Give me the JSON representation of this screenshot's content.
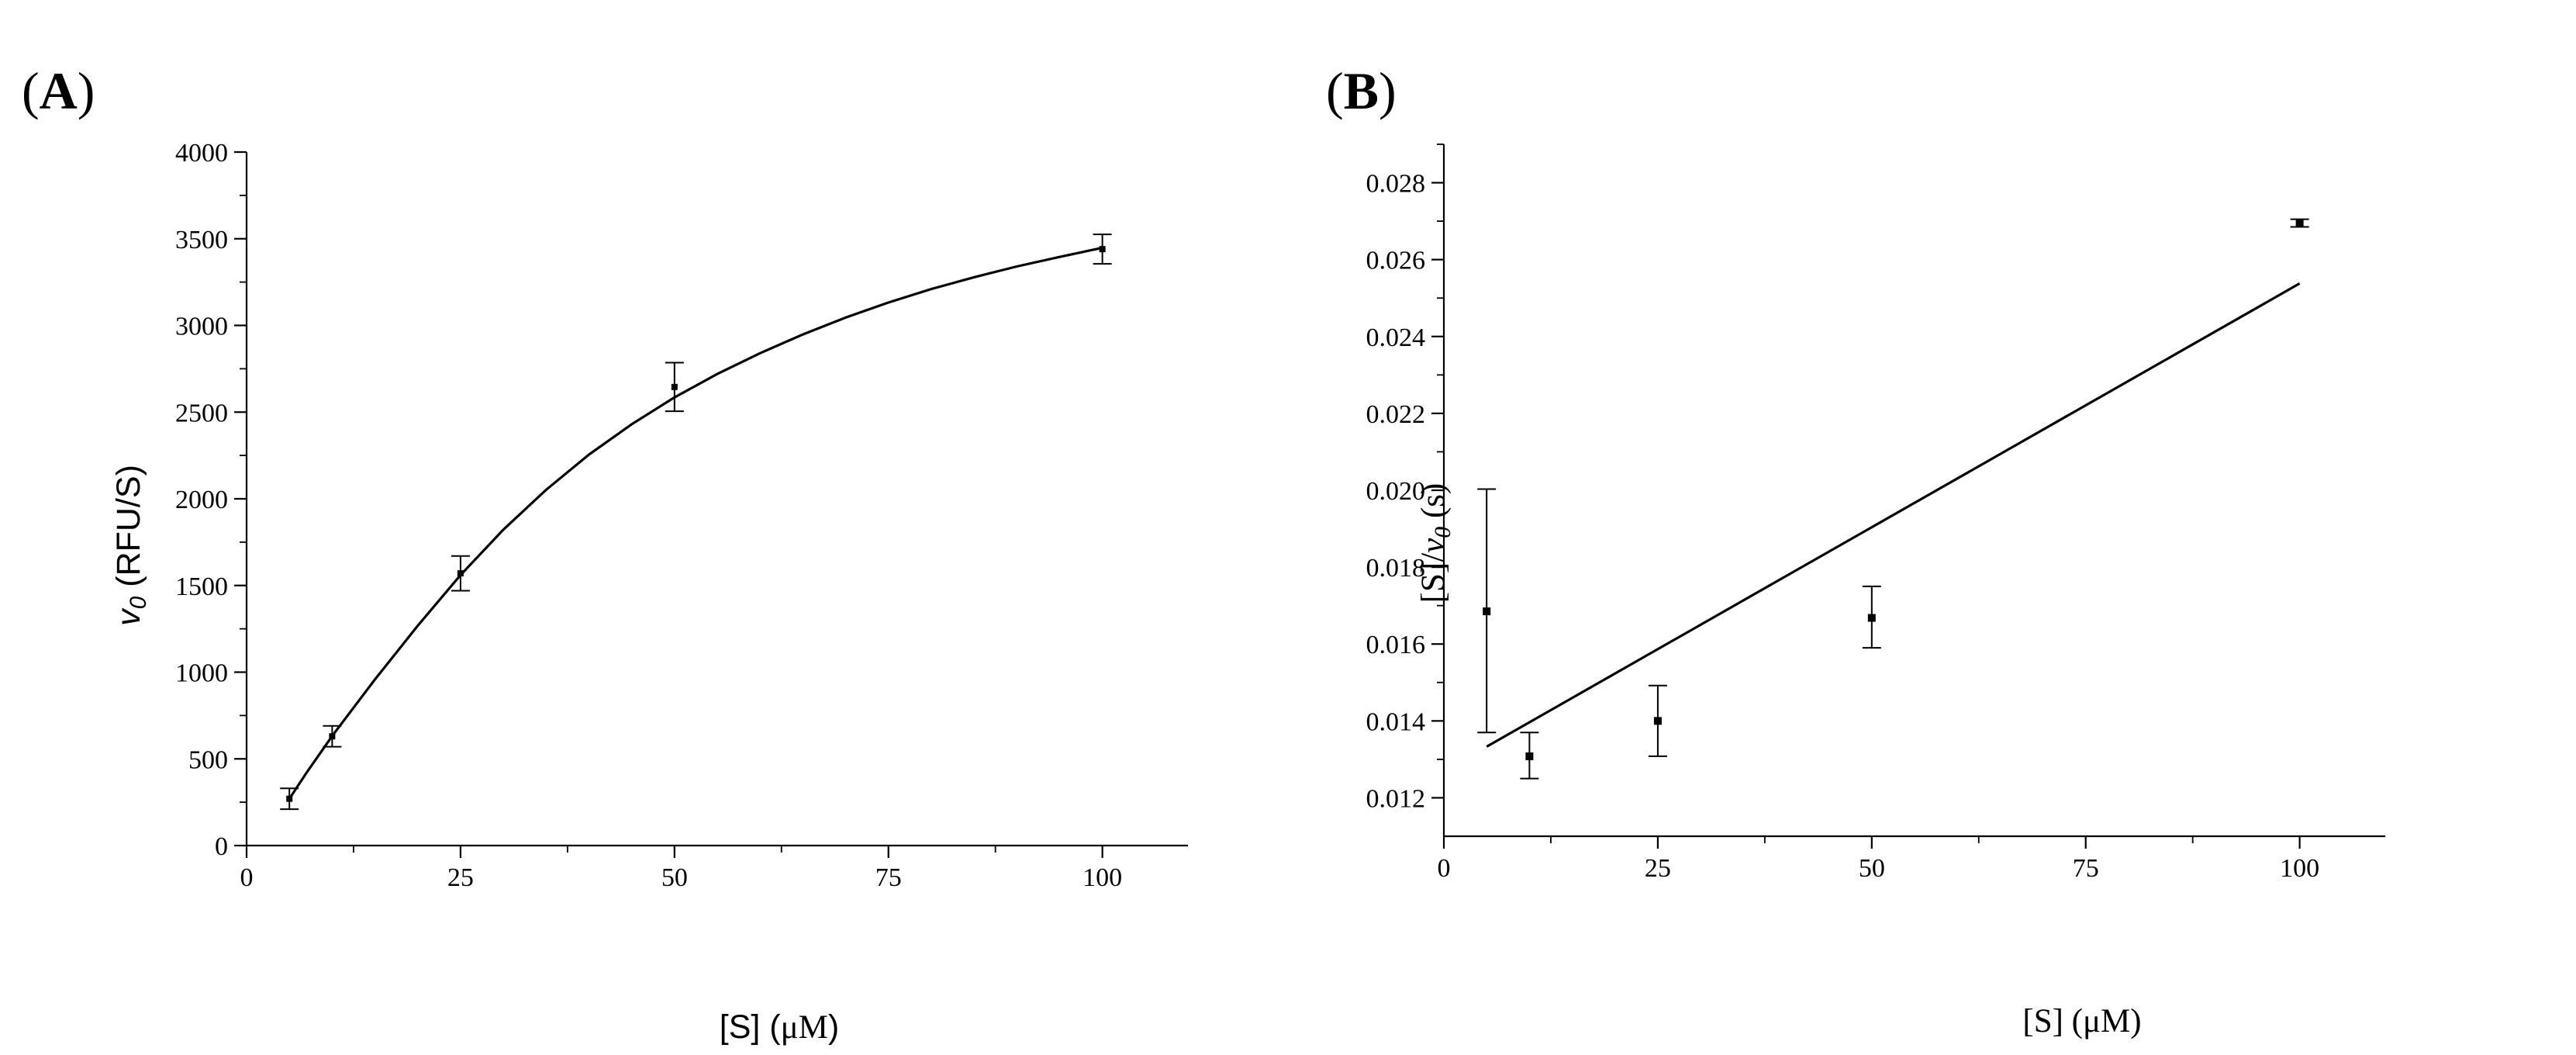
{
  "chart_data": [
    {
      "panel_label": "A",
      "type": "scatter",
      "fit": "michaelis-menten",
      "x": [
        5,
        10,
        25,
        50,
        100
      ],
      "y": [
        270,
        630,
        1570,
        2645,
        3440
      ],
      "yerr": [
        60,
        60,
        100,
        140,
        85
      ],
      "fit_curve": [
        [
          5,
          270
        ],
        [
          7,
          420
        ],
        [
          10,
          632
        ],
        [
          15,
          958
        ],
        [
          20,
          1268
        ],
        [
          25,
          1560
        ],
        [
          30,
          1822
        ],
        [
          35,
          2052
        ],
        [
          40,
          2255
        ],
        [
          45,
          2430
        ],
        [
          50,
          2585
        ],
        [
          55,
          2720
        ],
        [
          60,
          2840
        ],
        [
          65,
          2948
        ],
        [
          70,
          3045
        ],
        [
          75,
          3132
        ],
        [
          80,
          3210
        ],
        [
          85,
          3278
        ],
        [
          90,
          3340
        ],
        [
          95,
          3395
        ],
        [
          100,
          3448
        ]
      ],
      "xlabel_main": "[S] (",
      "xlabel_unit": "μM",
      "xlabel_close": ")",
      "ylabel_var": "v",
      "ylabel_sub": "0",
      "ylabel_unit": " (RFU/S)",
      "xlim": [
        0,
        110
      ],
      "ylim": [
        0,
        4000
      ],
      "xticks": [
        0,
        25,
        50,
        75,
        100
      ],
      "yticks": [
        0,
        500,
        1000,
        1500,
        2000,
        2500,
        3000,
        3500,
        4000
      ],
      "xtick_labels": [
        "0",
        "25",
        "50",
        "75",
        "100"
      ],
      "ytick_labels": [
        "0",
        "500",
        "1000",
        "1500",
        "2000",
        "2500",
        "3000",
        "3500",
        "4000"
      ]
    },
    {
      "panel_label": "B",
      "type": "scatter",
      "fit": "linear (Hanes-Woolf)",
      "x": [
        5,
        10,
        25,
        50,
        100
      ],
      "y": [
        0.01685,
        0.01308,
        0.014,
        0.01668,
        0.02695
      ],
      "yerr_low": [
        0.00315,
        0.00058,
        0.00092,
        0.00078,
        0.0001
      ],
      "yerr_high": [
        0.00318,
        0.00062,
        0.00092,
        0.00082,
        0.0001
      ],
      "fit_line": [
        [
          5,
          0.01333
        ],
        [
          100,
          0.02538
        ]
      ],
      "xlabel_main": "[S] (",
      "xlabel_unit": "μM",
      "xlabel_close": ")",
      "ylabel_pre": "[S]/",
      "ylabel_var": "v",
      "ylabel_sub": "0",
      "ylabel_unit": " (s)",
      "xlim": [
        0,
        110
      ],
      "ylim": [
        0.011,
        0.029
      ],
      "xticks": [
        0,
        25,
        50,
        75,
        100
      ],
      "yticks": [
        0.012,
        0.014,
        0.016,
        0.018,
        0.02,
        0.022,
        0.024,
        0.026,
        0.028
      ],
      "xtick_labels": [
        "0",
        "25",
        "50",
        "75",
        "100"
      ],
      "ytick_labels": [
        "0.012",
        "0.014",
        "0.016",
        "0.018",
        "0.020",
        "0.022",
        "0.024",
        "0.026",
        "0.028"
      ]
    }
  ],
  "labels": {
    "panel_a": "A",
    "panel_b": "B",
    "open_paren": "(",
    "close_paren": ")"
  }
}
